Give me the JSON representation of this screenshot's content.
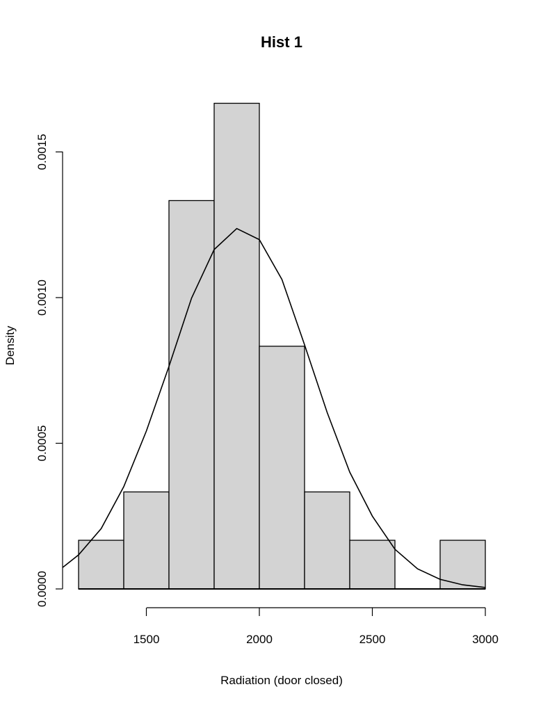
{
  "chart_data": {
    "type": "bar",
    "subtype": "histogram-with-density",
    "title": "Hist 1",
    "xlabel": "Radiation (door closed)",
    "ylabel": "Density",
    "bin_width": 200,
    "bins": [
      {
        "start": 1200,
        "end": 1400,
        "density": 0.000167
      },
      {
        "start": 1400,
        "end": 1600,
        "density": 0.000333
      },
      {
        "start": 1600,
        "end": 1800,
        "density": 0.001333
      },
      {
        "start": 1800,
        "end": 2000,
        "density": 0.001667
      },
      {
        "start": 2000,
        "end": 2200,
        "density": 0.000833
      },
      {
        "start": 2200,
        "end": 2400,
        "density": 0.000333
      },
      {
        "start": 2400,
        "end": 2600,
        "density": 0.000167
      },
      {
        "start": 2600,
        "end": 2800,
        "density": 0.0
      },
      {
        "start": 2800,
        "end": 3000,
        "density": 0.000167
      }
    ],
    "categories": [
      "1200-1400",
      "1400-1600",
      "1600-1800",
      "1800-2000",
      "2000-2200",
      "2200-2400",
      "2400-2600",
      "2600-2800",
      "2800-3000"
    ],
    "values": [
      0.000167,
      0.000333,
      0.001333,
      0.001667,
      0.000833,
      0.000333,
      0.000167,
      0.0,
      0.000167
    ],
    "density_curve": {
      "x": [
        1130,
        1200,
        1300,
        1400,
        1500,
        1600,
        1700,
        1800,
        1900,
        2000,
        2100,
        2200,
        2300,
        2400,
        2500,
        2600,
        2700,
        2800,
        2900,
        3000
      ],
      "y": [
        7.4e-05,
        0.000117,
        0.000207,
        0.000351,
        0.000542,
        0.000764,
        0.000998,
        0.001165,
        0.001237,
        0.001199,
        0.001062,
        0.000838,
        0.000606,
        0.000401,
        0.00025,
        0.000136,
        6.9e-05,
        3.3e-05,
        1.4e-05,
        5e-06
      ]
    },
    "x_ticks": [
      1500,
      2000,
      2500,
      3000
    ],
    "x_tick_labels": [
      "1500",
      "2000",
      "2500",
      "3000"
    ],
    "y_ticks": [
      0.0,
      0.0005,
      0.001,
      0.0015
    ],
    "y_tick_labels": [
      "0.0000",
      "0.0005",
      "0.0010",
      "0.0015"
    ],
    "xlim": [
      1130,
      3000
    ],
    "ylim": [
      0,
      0.00175
    ],
    "grid": false,
    "legend": null,
    "colors": {
      "bar_fill": "#d3d3d3",
      "bar_stroke": "#000000",
      "curve": "#000000"
    }
  }
}
